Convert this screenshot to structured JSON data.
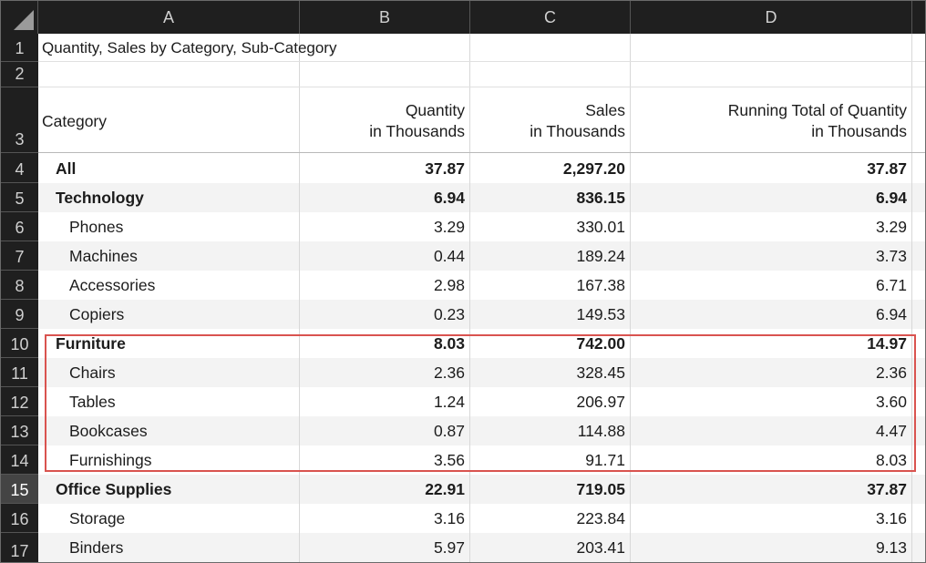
{
  "column_headers": [
    "A",
    "B",
    "C",
    "D"
  ],
  "title": "Quantity, Sales by Category, Sub-Category",
  "header": {
    "category": "Category",
    "quantity_l1": "Quantity",
    "quantity_l2": "in Thousands",
    "sales_l1": "Sales",
    "sales_l2": "in Thousands",
    "running_l1": "Running Total of Quantity",
    "running_l2": "in Thousands"
  },
  "row_numbers": [
    "1",
    "2",
    "3",
    "4",
    "5",
    "6",
    "7",
    "8",
    "9",
    "10",
    "11",
    "12",
    "13",
    "14",
    "15",
    "16",
    "17"
  ],
  "rows": [
    {
      "label": "All",
      "quantity": "37.87",
      "sales": "2,297.20",
      "running": "37.87"
    },
    {
      "label": "Technology",
      "quantity": "6.94",
      "sales": "836.15",
      "running": "6.94"
    },
    {
      "label": "Phones",
      "quantity": "3.29",
      "sales": "330.01",
      "running": "3.29"
    },
    {
      "label": "Machines",
      "quantity": "0.44",
      "sales": "189.24",
      "running": "3.73"
    },
    {
      "label": "Accessories",
      "quantity": "2.98",
      "sales": "167.38",
      "running": "6.71"
    },
    {
      "label": "Copiers",
      "quantity": "0.23",
      "sales": "149.53",
      "running": "6.94"
    },
    {
      "label": "Furniture",
      "quantity": "8.03",
      "sales": "742.00",
      "running": "14.97"
    },
    {
      "label": "Chairs",
      "quantity": "2.36",
      "sales": "328.45",
      "running": "2.36"
    },
    {
      "label": "Tables",
      "quantity": "1.24",
      "sales": "206.97",
      "running": "3.60"
    },
    {
      "label": "Bookcases",
      "quantity": "0.87",
      "sales": "114.88",
      "running": "4.47"
    },
    {
      "label": "Furnishings",
      "quantity": "3.56",
      "sales": "91.71",
      "running": "8.03"
    },
    {
      "label": "Office Supplies",
      "quantity": "22.91",
      "sales": "719.05",
      "running": "37.87"
    },
    {
      "label": "Storage",
      "quantity": "3.16",
      "sales": "223.84",
      "running": "3.16"
    },
    {
      "label": "Binders",
      "quantity": "5.97",
      "sales": "203.41",
      "running": "9.13"
    }
  ],
  "colors": {
    "header_bg": "#1f1f1f",
    "selected_row_header": "#444444",
    "band": "#f3f3f3",
    "highlight": "#d9534f"
  }
}
